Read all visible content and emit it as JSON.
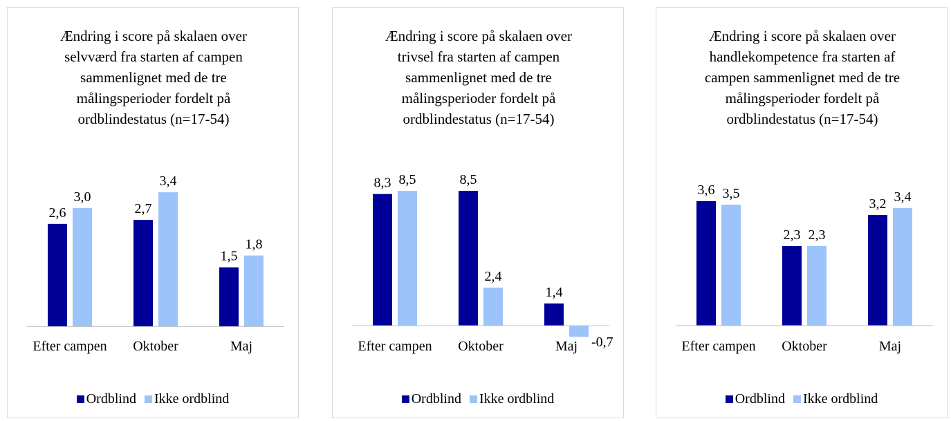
{
  "chart_data": [
    {
      "type": "bar",
      "title": "Ændring i score på skalaen over selvværd fra starten af campen sammenlignet med de tre målingsperioder fordelt på ordblindestatus (n=17-54)",
      "categories": [
        "Efter campen",
        "Oktober",
        "Maj"
      ],
      "series": [
        {
          "name": "Ordblind",
          "color": "#000099",
          "values": [
            2.6,
            2.7,
            1.5
          ],
          "value_labels": [
            "2,6",
            "2,7",
            "1,5"
          ]
        },
        {
          "name": "Ikke ordblind",
          "color": "#9dc3fb",
          "values": [
            3.0,
            3.4,
            1.8
          ],
          "value_labels": [
            "3,0",
            "3,4",
            "1,8"
          ]
        }
      ],
      "ylim": [
        -0.5,
        4.4
      ]
    },
    {
      "type": "bar",
      "title": "Ændring i score på skalaen over trivsel fra starten af campen sammenlignet med de tre målingsperioder fordelt på ordblindestatus (n=17-54)",
      "categories": [
        "Efter campen",
        "Oktober",
        "Maj"
      ],
      "series": [
        {
          "name": "Ordblind",
          "color": "#000099",
          "values": [
            8.3,
            8.5,
            1.4
          ],
          "value_labels": [
            "8,3",
            "8,5",
            "1,4"
          ]
        },
        {
          "name": "Ikke ordblind",
          "color": "#9dc3fb",
          "values": [
            8.5,
            2.4,
            -0.7
          ],
          "value_labels": [
            "8,5",
            "2,4",
            "-0,7"
          ]
        }
      ],
      "ylim": [
        -1.3,
        10.9
      ]
    },
    {
      "type": "bar",
      "title": "Ændring i score på skalaen over handlekompetence fra starten af campen sammenlignet med de tre målingsperioder fordelt på ordblindestatus (n=17-54)",
      "categories": [
        "Efter campen",
        "Oktober",
        "Maj"
      ],
      "series": [
        {
          "name": "Ordblind",
          "color": "#000099",
          "values": [
            3.6,
            2.3,
            3.2
          ],
          "value_labels": [
            "3,6",
            "2,3",
            "3,2"
          ]
        },
        {
          "name": "Ikke ordblind",
          "color": "#9dc3fb",
          "values": [
            3.5,
            2.3,
            3.4
          ],
          "value_labels": [
            "3,5",
            "2,3",
            "3,4"
          ]
        }
      ],
      "ylim": [
        -0.6,
        5.0
      ]
    }
  ]
}
